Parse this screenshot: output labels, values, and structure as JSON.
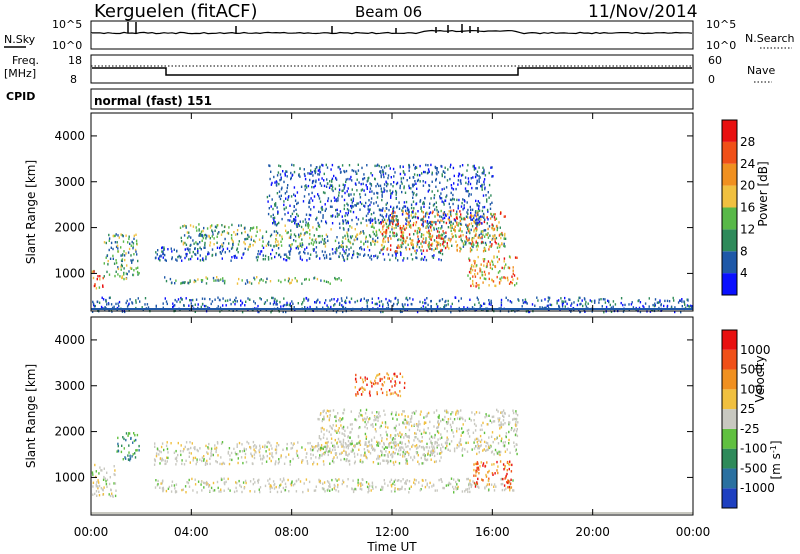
{
  "header": {
    "station": "Kerguelen (fitACF)",
    "beam": "Beam 06",
    "date": "11/Nov/2014"
  },
  "noise_panel": {
    "left_label": "N.Sky",
    "right_label": "N.Search",
    "ticks": [
      "10^5",
      "10^0"
    ]
  },
  "freq_panel": {
    "left_label_1": "Freq.",
    "left_label_2": "[MHz]",
    "right_label": "Nave",
    "left_ticks": [
      "18",
      "8"
    ],
    "right_ticks": [
      "60",
      "0"
    ]
  },
  "cpid": {
    "label": "CPID",
    "value": "normal (fast) 151"
  },
  "x_axis": {
    "label": "Time UT",
    "ticks": [
      "00:00",
      "04:00",
      "08:00",
      "12:00",
      "16:00",
      "20:00",
      "00:00"
    ]
  },
  "chart_data": [
    {
      "type": "heatmap",
      "name": "power",
      "ylabel": "Slant Range [km]",
      "yticks": [
        "1000",
        "2000",
        "3000",
        "4000"
      ],
      "ylim": [
        180,
        4500
      ],
      "xlim": [
        0,
        24
      ],
      "colorbar": {
        "label": "Power [dB]",
        "ticks": [
          "4",
          "8",
          "12",
          "16",
          "20",
          "24",
          "28"
        ],
        "colors": [
          "#0a10ff",
          "#1e58a8",
          "#2e8a5a",
          "#58b848",
          "#f0c040",
          "#f09020",
          "#f05018",
          "#e81010"
        ]
      },
      "regions": [
        {
          "x": [
            0.0,
            0.5
          ],
          "y": [
            700,
            1100
          ],
          "level": "high"
        },
        {
          "x": [
            0.5,
            1.9
          ],
          "y": [
            900,
            1900
          ],
          "level": "mid"
        },
        {
          "x": [
            2.8,
            10.0
          ],
          "y": [
            800,
            950
          ],
          "level": "mid"
        },
        {
          "x": [
            2.5,
            14.0
          ],
          "y": [
            1300,
            1600
          ],
          "level": "low"
        },
        {
          "x": [
            3.5,
            16.5
          ],
          "y": [
            1600,
            2100
          ],
          "level": "mid"
        },
        {
          "x": [
            11.5,
            16.5
          ],
          "y": [
            1500,
            2400
          ],
          "level": "high"
        },
        {
          "x": [
            7.0,
            16.0
          ],
          "y": [
            2100,
            3400
          ],
          "level": "low"
        },
        {
          "x": [
            15.0,
            17.0
          ],
          "y": [
            700,
            1400
          ],
          "level": "high"
        },
        {
          "x": [
            0.0,
            24.0
          ],
          "y": [
            180,
            500
          ],
          "level": "low"
        }
      ]
    },
    {
      "type": "heatmap",
      "name": "velocity",
      "ylabel": "Slant Range [km]",
      "yticks": [
        "1000",
        "2000",
        "3000",
        "4000"
      ],
      "ylim": [
        180,
        4500
      ],
      "xlim": [
        0,
        24
      ],
      "colorbar": {
        "label": "Velocity",
        "units_base": "[m s",
        "units_exp": "-1",
        "units_close": "]",
        "ticks": [
          "1000",
          "500",
          "100",
          "25",
          "-25",
          "-100",
          "-500",
          "-1000"
        ],
        "colors": [
          "#1e40c0",
          "#2a70a0",
          "#2e8a5a",
          "#60c040",
          "#c8c8c0",
          "#f0c040",
          "#f09020",
          "#f05018",
          "#e81010"
        ]
      },
      "regions": [
        {
          "x": [
            0.0,
            1.0
          ],
          "y": [
            600,
            1300
          ],
          "level": "neutral"
        },
        {
          "x": [
            1.0,
            1.9
          ],
          "y": [
            1400,
            2000
          ],
          "level": "toward"
        },
        {
          "x": [
            2.5,
            17.0
          ],
          "y": [
            700,
            1000
          ],
          "level": "neutral"
        },
        {
          "x": [
            2.5,
            14.0
          ],
          "y": [
            1300,
            1800
          ],
          "level": "neutral"
        },
        {
          "x": [
            9.0,
            17.0
          ],
          "y": [
            1500,
            2500
          ],
          "level": "neutral"
        },
        {
          "x": [
            10.5,
            12.5
          ],
          "y": [
            2800,
            3300
          ],
          "level": "away"
        },
        {
          "x": [
            15.2,
            16.8
          ],
          "y": [
            800,
            1400
          ],
          "level": "away"
        }
      ]
    }
  ]
}
